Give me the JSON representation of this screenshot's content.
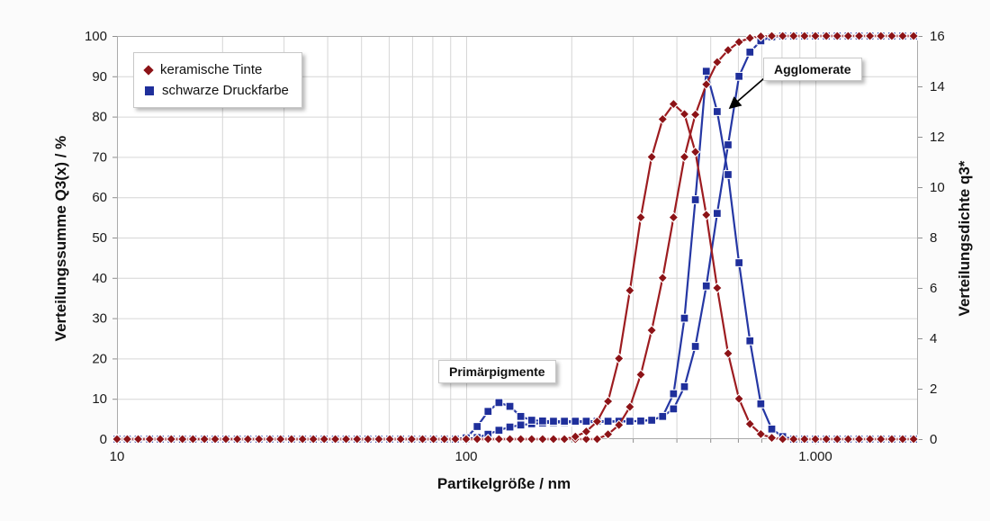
{
  "chart_data": {
    "type": "line",
    "x_axis": {
      "title": "Partikelgröße / nm",
      "scale": "log",
      "min": 10,
      "max": 2000,
      "ticks": [
        {
          "value": 10,
          "label": "10"
        },
        {
          "value": 100,
          "label": "100"
        },
        {
          "value": 1000,
          "label": "1.000"
        }
      ]
    },
    "left_axis": {
      "title": "Verteilungssumme Q3(x) / %",
      "min": 0,
      "max": 100,
      "step": 10
    },
    "right_axis": {
      "title": "Verteilungsdichte q3*",
      "min": 0,
      "max": 16,
      "step": 2
    },
    "grid": true,
    "legend_position": "top-left",
    "x": [
      10,
      10.7,
      11.5,
      12.4,
      13.3,
      14.3,
      15.4,
      16.5,
      17.8,
      19.1,
      20.5,
      22.1,
      23.7,
      25.5,
      27.4,
      29.4,
      31.6,
      34,
      36.5,
      39.2,
      42.2,
      45.3,
      48.7,
      52.3,
      56.2,
      60.4,
      64.9,
      69.8,
      75,
      80.6,
      86.6,
      93.1,
      100,
      107.5,
      115.5,
      124.1,
      133.4,
      143.3,
      154,
      165.5,
      177.8,
      191.1,
      205.4,
      220.7,
      237.1,
      254.8,
      273.8,
      294.3,
      316.2,
      339.8,
      365.2,
      392.4,
      421.7,
      453.2,
      487,
      523.3,
      562.3,
      604.3,
      649.4,
      697.8,
      750,
      805.9,
      866,
      930.6,
      1000,
      1075,
      1155,
      1241,
      1334,
      1433,
      1540,
      1655,
      1778,
      1911
    ],
    "series": [
      {
        "name": "schwarze Druckfarbe Q3(x)",
        "axis": "left",
        "color": "#2537A4",
        "marker_color": "#1F2F9B",
        "marker": "square",
        "values": [
          0,
          0,
          0,
          0,
          0,
          0,
          0,
          0,
          0,
          0,
          0,
          0,
          0,
          0,
          0,
          0,
          0,
          0,
          0,
          0,
          0,
          0,
          0,
          0,
          0,
          0,
          0,
          0,
          0,
          0,
          0,
          0,
          0,
          0.4,
          1.2,
          2.2,
          3,
          3.5,
          3.8,
          4,
          4.1,
          4.15,
          4.2,
          4.2,
          4.25,
          4.3,
          4.3,
          4.4,
          4.5,
          4.8,
          5.6,
          7.5,
          13,
          23,
          38,
          56,
          73,
          90,
          96,
          98.8,
          99.8,
          100,
          100,
          100,
          100,
          100,
          100,
          100,
          100,
          100,
          100,
          100,
          100,
          100
        ]
      },
      {
        "name": "schwarze Druckfarbe q3*",
        "axis": "right",
        "color": "#2537A4",
        "marker_color": "#1F2F9B",
        "marker": "square",
        "values": [
          0,
          0,
          0,
          0,
          0,
          0,
          0,
          0,
          0,
          0,
          0,
          0,
          0,
          0,
          0,
          0,
          0,
          0,
          0,
          0,
          0,
          0,
          0,
          0,
          0,
          0,
          0,
          0,
          0,
          0,
          0,
          0,
          0.05,
          0.5,
          1.1,
          1.45,
          1.3,
          0.9,
          0.75,
          0.72,
          0.71,
          0.71,
          0.71,
          0.71,
          0.71,
          0.71,
          0.71,
          0.71,
          0.72,
          0.75,
          0.9,
          1.8,
          4.8,
          9.5,
          14.6,
          13,
          10.5,
          7,
          3.9,
          1.4,
          0.4,
          0.1,
          0,
          0,
          0,
          0,
          0,
          0,
          0,
          0,
          0,
          0,
          0,
          0
        ]
      },
      {
        "name": "keramische Tinte Q3(x)",
        "axis": "left",
        "color": "#9D1C20",
        "marker_color": "#8C1317",
        "marker": "diamond",
        "values": [
          0,
          0,
          0,
          0,
          0,
          0,
          0,
          0,
          0,
          0,
          0,
          0,
          0,
          0,
          0,
          0,
          0,
          0,
          0,
          0,
          0,
          0,
          0,
          0,
          0,
          0,
          0,
          0,
          0,
          0,
          0,
          0,
          0,
          0,
          0,
          0,
          0,
          0,
          0,
          0,
          0,
          0,
          0,
          0,
          0,
          1.2,
          3.5,
          8,
          16,
          27,
          40,
          55,
          70,
          80.5,
          88,
          93.5,
          96.5,
          98.5,
          99.5,
          99.9,
          100,
          100,
          100,
          100,
          100,
          100,
          100,
          100,
          100,
          100,
          100,
          100,
          100,
          100
        ]
      },
      {
        "name": "keramische Tinte q3*",
        "axis": "right",
        "color": "#9D1C20",
        "marker_color": "#8C1317",
        "marker": "diamond",
        "values": [
          0,
          0,
          0,
          0,
          0,
          0,
          0,
          0,
          0,
          0,
          0,
          0,
          0,
          0,
          0,
          0,
          0,
          0,
          0,
          0,
          0,
          0,
          0,
          0,
          0,
          0,
          0,
          0,
          0,
          0,
          0,
          0,
          0,
          0,
          0,
          0,
          0,
          0,
          0,
          0,
          0,
          0,
          0.1,
          0.3,
          0.7,
          1.5,
          3.2,
          5.9,
          8.8,
          11.2,
          12.7,
          13.3,
          12.9,
          11.4,
          8.9,
          6,
          3.4,
          1.6,
          0.6,
          0.2,
          0.05,
          0,
          0,
          0,
          0,
          0,
          0,
          0,
          0,
          0,
          0,
          0,
          0,
          0
        ]
      }
    ]
  },
  "legend": {
    "items": [
      {
        "label": "keramische Tinte",
        "color": "#8C1317",
        "marker": "diamond"
      },
      {
        "label": "schwarze Druckfarbe",
        "color": "#1F2F9B",
        "marker": "square"
      }
    ]
  },
  "annotations": [
    {
      "text": "Agglomerate",
      "has_arrow": true
    },
    {
      "text": "Primärpigmente",
      "has_arrow": false
    }
  ]
}
